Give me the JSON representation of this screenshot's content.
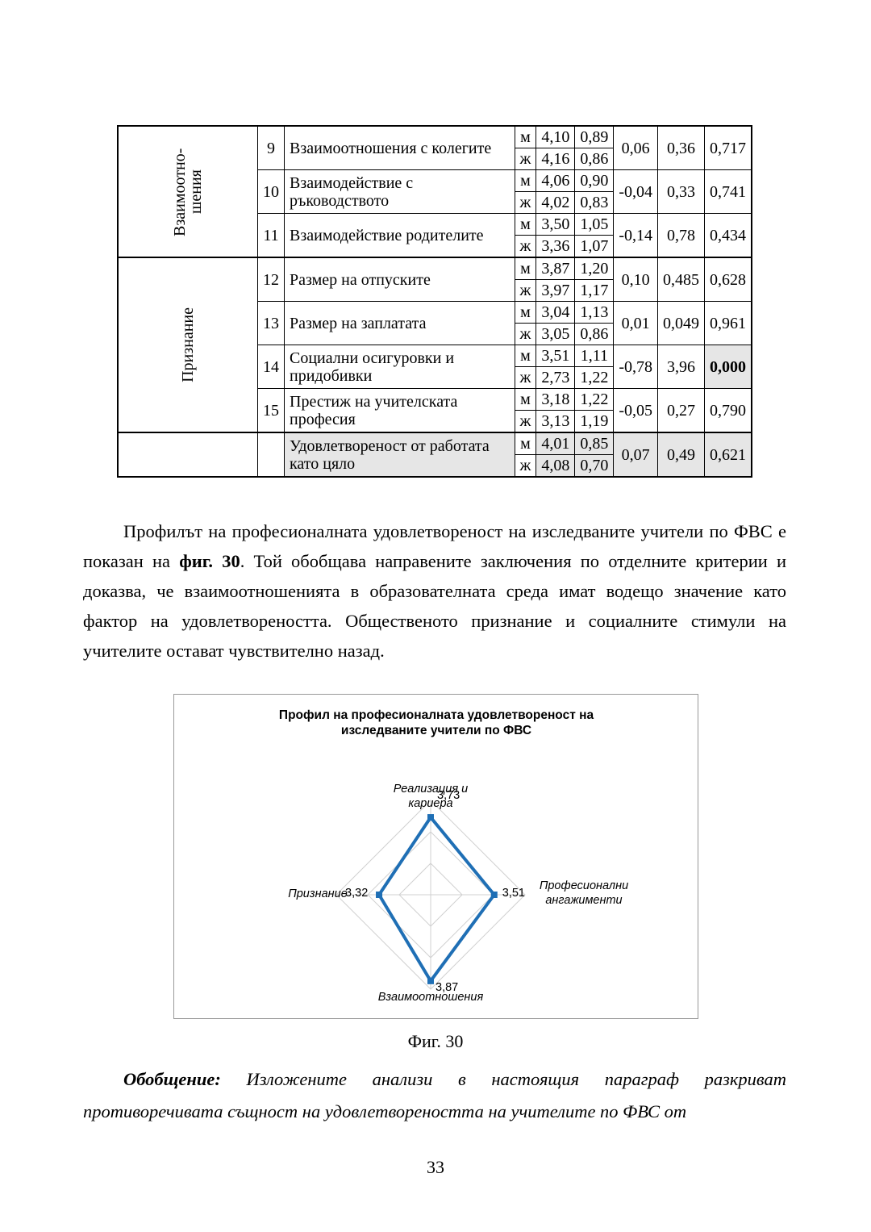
{
  "table": {
    "sex_labels": [
      "м",
      "ж"
    ],
    "groups": [
      {
        "label": "Взаимоотно-шения",
        "rows": [
          {
            "num": "9",
            "name": "Взаимоотношения с колегите",
            "stats": [
              [
                "4,10",
                "0,89"
              ],
              [
                "4,16",
                "0,86"
              ]
            ],
            "diff": "0,06",
            "t": "0,36",
            "p": "0,717"
          },
          {
            "num": "10",
            "name": "Взаимодействие с ръководството",
            "stats": [
              [
                "4,06",
                "0,90"
              ],
              [
                "4,02",
                "0,83"
              ]
            ],
            "diff": "-0,04",
            "t": "0,33",
            "p": "0,741"
          },
          {
            "num": "11",
            "name": "Взаимодействие родителите",
            "stats": [
              [
                "3,50",
                "1,05"
              ],
              [
                "3,36",
                "1,07"
              ]
            ],
            "diff": "-0,14",
            "t": "0,78",
            "p": "0,434"
          }
        ]
      },
      {
        "label": "Признание",
        "rows": [
          {
            "num": "12",
            "name": "Размер на отпуските",
            "stats": [
              [
                "3,87",
                "1,20"
              ],
              [
                "3,97",
                "1,17"
              ]
            ],
            "diff": "0,10",
            "t": "0,485",
            "p": "0,628"
          },
          {
            "num": "13",
            "name": "Размер на заплатата",
            "stats": [
              [
                "3,04",
                "1,13"
              ],
              [
                "3,05",
                "0,86"
              ]
            ],
            "diff": "0,01",
            "t": "0,049",
            "p": "0,961"
          },
          {
            "num": "14",
            "name": "Социални осигуровки и придобивки",
            "stats": [
              [
                "3,51",
                "1,11"
              ],
              [
                "2,73",
                "1,22"
              ]
            ],
            "diff": "-0,78",
            "t": "3,96",
            "p": "0,000",
            "p_bold": true
          },
          {
            "num": "15",
            "name": "Престиж на учителската професия",
            "stats": [
              [
                "3,18",
                "1,22"
              ],
              [
                "3,13",
                "1,19"
              ]
            ],
            "diff": "-0,05",
            "t": "0,27",
            "p": "0,790"
          }
        ]
      }
    ],
    "total": {
      "name": "Удовлетвореност от работата като цяло",
      "stats": [
        [
          "4,01",
          "0,85"
        ],
        [
          "4,08",
          "0,70"
        ]
      ],
      "diff": "0,07",
      "t": "0,49",
      "p": "0,621"
    }
  },
  "paragraph": [
    "Профилът на професионалната удовлетвореност на изследваните учители по ФВС е показан на ",
    "фиг. 30",
    ". Той обобщава направените заключения по отделните критерии и доказва, че взаимоотношенията в образователната среда имат водещо значение като фактор на удовлетвореността. Общественото признание и социалните стимули на учителите остават чувствително назад."
  ],
  "chart_data": {
    "type": "radar",
    "title": "Профил на професионалната удовлетвореност на изследваните учители по ФВС",
    "categories": [
      "Реализация и кариера",
      "Професионални ангажименти",
      "Взаимоотношения",
      "Признание"
    ],
    "values": [
      3.73,
      3.51,
      3.87,
      3.32
    ],
    "value_labels": [
      "3,73",
      "3,51",
      "3,87",
      "3,32"
    ],
    "color": "#1f6fb5",
    "ylim": [
      2.5,
      4
    ],
    "yticks": [
      3,
      3.5,
      4
    ]
  },
  "caption": "Фиг. 30",
  "summary": {
    "lead": "Обобщение:",
    "text": " Изложените анализи в настоящия параграф разкриват противоречивата същност на удовлетвореността на учителите по ФВС от"
  },
  "page_number": "33"
}
